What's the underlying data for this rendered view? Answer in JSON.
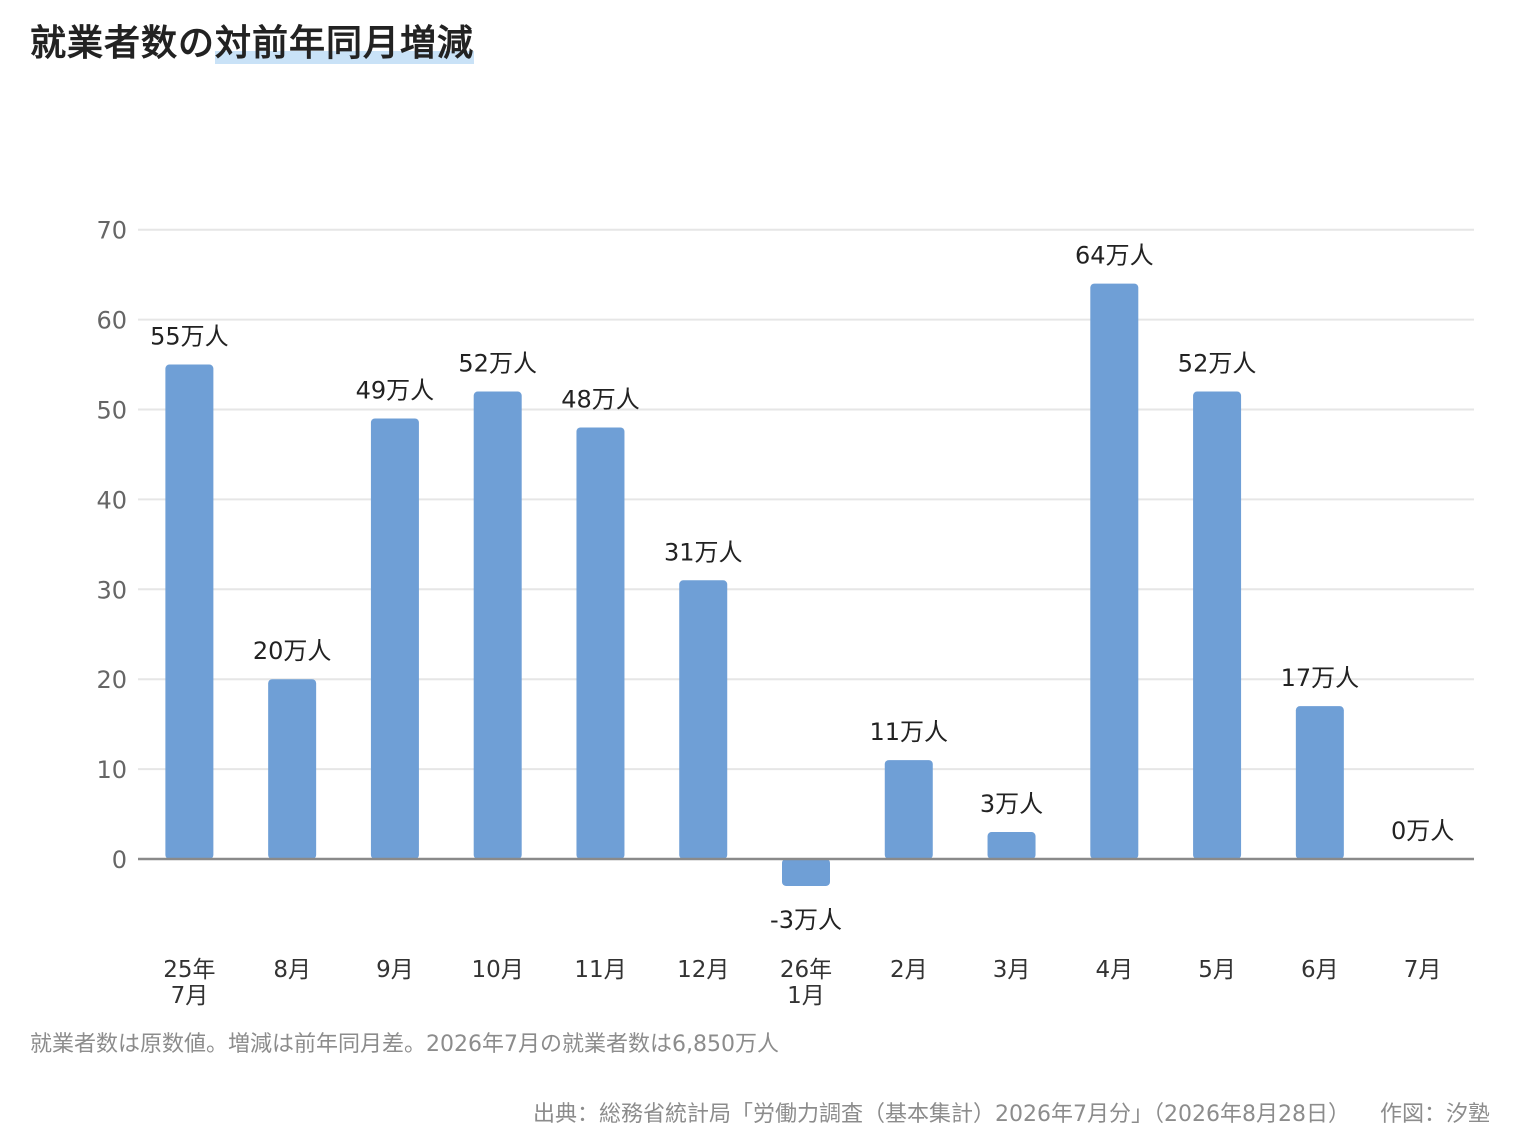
{
  "title": {
    "part1": "就業者数の",
    "part2": "対前年同月増減"
  },
  "chart_data": {
    "type": "bar",
    "title": "就業者数の対前年同月増減",
    "categories": [
      [
        "25年",
        "7月"
      ],
      [
        "8月"
      ],
      [
        "9月"
      ],
      [
        "10月"
      ],
      [
        "11月"
      ],
      [
        "12月"
      ],
      [
        "26年",
        "1月"
      ],
      [
        "2月"
      ],
      [
        "3月"
      ],
      [
        "4月"
      ],
      [
        "5月"
      ],
      [
        "6月"
      ],
      [
        "7月"
      ]
    ],
    "values": [
      55,
      20,
      49,
      52,
      48,
      31,
      -3,
      11,
      3,
      64,
      52,
      17,
      0
    ],
    "data_labels": [
      "55万人",
      "20万人",
      "49万人",
      "52万人",
      "48万人",
      "31万人",
      "-3万人",
      "11万人",
      "3万人",
      "64万人",
      "52万人",
      "17万人",
      "0万人"
    ],
    "yticks": [
      "0",
      "10",
      "20",
      "30",
      "40",
      "50",
      "60",
      "70"
    ],
    "ylim": [
      -3,
      70
    ],
    "grid": true,
    "bar_color": "#6f9fd6",
    "xlabel": "",
    "ylabel": ""
  },
  "footnote": "就業者数は原数値。増減は前年同月差。2026年7月の就業者数は6,850万人",
  "source": {
    "text": "出典：総務省統計局「労働力調査（基本集計）2026年7月分」（2026年8月28日）",
    "credit": "作図：汐塾"
  }
}
